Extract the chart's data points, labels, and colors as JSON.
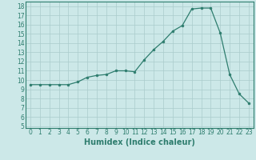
{
  "x": [
    0,
    1,
    2,
    3,
    4,
    5,
    6,
    7,
    8,
    9,
    10,
    11,
    12,
    13,
    14,
    15,
    16,
    17,
    18,
    19,
    20,
    21,
    22,
    23
  ],
  "y": [
    9.5,
    9.5,
    9.5,
    9.5,
    9.5,
    9.8,
    10.3,
    10.5,
    10.6,
    11.0,
    11.0,
    10.9,
    12.2,
    13.3,
    14.2,
    15.3,
    15.9,
    17.7,
    17.8,
    17.8,
    15.1,
    10.6,
    8.5,
    7.5
  ],
  "xlabel": "Humidex (Indice chaleur)",
  "xlim": [
    -0.5,
    23.5
  ],
  "ylim": [
    4.8,
    18.5
  ],
  "yticks": [
    5,
    6,
    7,
    8,
    9,
    10,
    11,
    12,
    13,
    14,
    15,
    16,
    17,
    18
  ],
  "xticks": [
    0,
    1,
    2,
    3,
    4,
    5,
    6,
    7,
    8,
    9,
    10,
    11,
    12,
    13,
    14,
    15,
    16,
    17,
    18,
    19,
    20,
    21,
    22,
    23
  ],
  "line_color": "#2e7d6e",
  "marker_color": "#2e7d6e",
  "bg_color": "#cce8e8",
  "grid_color": "#aacccc",
  "tick_fontsize": 5.5,
  "label_fontsize": 7
}
